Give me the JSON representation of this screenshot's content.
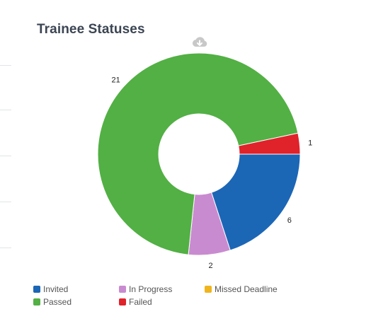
{
  "title": "Trainee Statuses",
  "download_icon": "cloud-download-icon",
  "chart_data": {
    "type": "pie",
    "variant": "donut",
    "title": "Trainee Statuses",
    "slices": [
      {
        "label": "Invited",
        "value": 6,
        "color": "#1c66b6"
      },
      {
        "label": "In Progress",
        "value": 2,
        "color": "#c98bd0"
      },
      {
        "label": "Missed Deadline",
        "value": 0,
        "color": "#f0b51e"
      },
      {
        "label": "Passed",
        "value": 21,
        "color": "#52b044"
      },
      {
        "label": "Failed",
        "value": 1,
        "color": "#e0222b"
      }
    ],
    "start_angle_deg": 90,
    "direction": "clockwise",
    "data_labels": true,
    "legend_position": "bottom-left"
  },
  "legend": [
    {
      "label": "Invited",
      "color": "#1c66b6"
    },
    {
      "label": "In Progress",
      "color": "#c98bd0"
    },
    {
      "label": "Missed Deadline",
      "color": "#f0b51e"
    },
    {
      "label": "Passed",
      "color": "#52b044"
    },
    {
      "label": "Failed",
      "color": "#e0222b"
    }
  ]
}
